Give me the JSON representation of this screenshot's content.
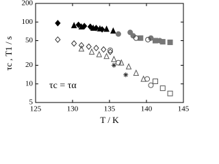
{
  "chart_data": {
    "type": "scatter",
    "xlabel": "T / K",
    "ylabel": "τc , T1 / s",
    "annotation": "τc = τα",
    "xlim": [
      125,
      145
    ],
    "xticks": [
      125,
      130,
      135,
      140,
      145
    ],
    "ylim": [
      5,
      200
    ],
    "yticks": [
      5,
      10,
      20,
      50,
      100,
      200
    ],
    "ylog": true,
    "series": [
      {
        "marker": "diamond",
        "filled": true,
        "color": "#000000",
        "x": [
          128,
          130.8,
          131.6,
          132.4,
          133.2,
          134.0
        ],
        "y": [
          96,
          90,
          86,
          84,
          80,
          76
        ]
      },
      {
        "marker": "triangle",
        "filled": true,
        "color": "#000000",
        "x": [
          130.2,
          131.2,
          132.8,
          133.7,
          134.6,
          135.5
        ],
        "y": [
          88,
          84,
          80,
          78,
          77,
          72
        ]
      },
      {
        "marker": "circle",
        "filled": true,
        "color": "#777777",
        "x": [
          136.2,
          137.8,
          138.2,
          140.6,
          141.8
        ],
        "y": [
          64,
          68,
          60,
          55,
          50
        ]
      },
      {
        "marker": "square",
        "filled": true,
        "color": "#777777",
        "x": [
          139.2,
          141.2,
          142.2,
          143.2
        ],
        "y": [
          55,
          50,
          48,
          47
        ]
      },
      {
        "marker": "circle",
        "filled": false,
        "color": "#444444",
        "x": [
          138.6,
          140.2
        ],
        "y": [
          55,
          52
        ]
      },
      {
        "marker": "diamond",
        "filled": false,
        "color": "#333333",
        "x": [
          128,
          130.2,
          131.2,
          132.2,
          133.2,
          134.2,
          135.1
        ],
        "y": [
          52,
          45,
          42,
          40,
          38,
          36,
          33
        ]
      },
      {
        "marker": "triangle",
        "filled": false,
        "color": "#555555",
        "x": [
          131.2,
          132.6,
          133.6,
          134.6,
          135.6,
          136.6,
          137.6,
          138.6,
          139.6
        ],
        "y": [
          37,
          33,
          30,
          28,
          25,
          22,
          19,
          15,
          12
        ]
      },
      {
        "marker": "circle",
        "filled": false,
        "color": "#555555",
        "x": [
          135.1,
          136.2,
          140.1,
          140.6
        ],
        "y": [
          35,
          22,
          12,
          9.5
        ]
      },
      {
        "marker": "square",
        "filled": false,
        "color": "#555555",
        "x": [
          141.2,
          142.2,
          143.2
        ],
        "y": [
          11,
          8.5,
          7
        ]
      },
      {
        "marker": "star",
        "filled": false,
        "color": "#333333",
        "x": [
          135.6,
          137.2
        ],
        "y": [
          20,
          14
        ]
      }
    ]
  }
}
